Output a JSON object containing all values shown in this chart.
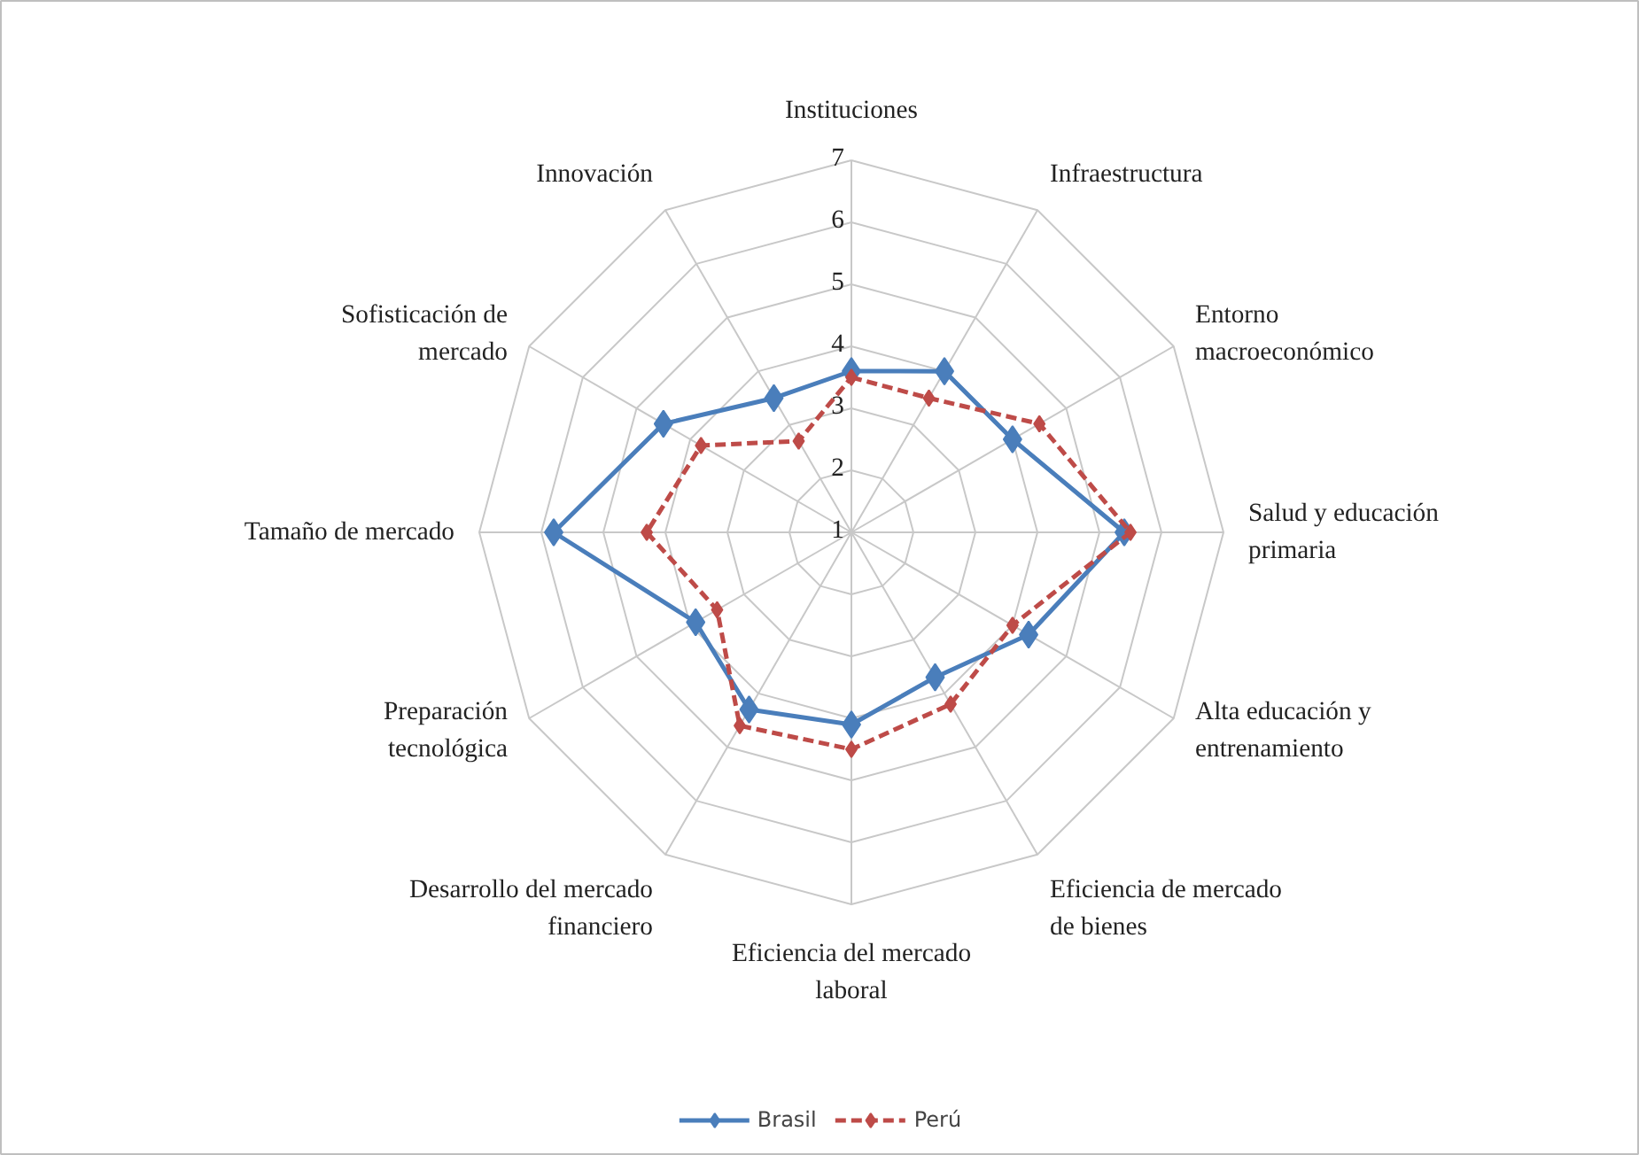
{
  "chart_data": {
    "type": "radar",
    "categories": [
      "Instituciones",
      "Infraestructura",
      "Entorno\nmacroeconómico",
      "Salud y educación\nprimaria",
      "Alta educación y\nentrenamiento",
      "Eficiencia de mercado\nde bienes",
      "Eficiencia del mercado\nlaboral",
      "Desarrollo del mercado\nfinanciero",
      "Preparación\ntecnológica",
      "Tamaño de mercado",
      "Sofisticación de\nmercado",
      "Innovación"
    ],
    "series": [
      {
        "name": "Brasil",
        "color": "#4a7ebb",
        "line_style": "solid",
        "values": [
          3.6,
          4.0,
          4.0,
          5.4,
          4.3,
          3.7,
          4.1,
          4.3,
          3.9,
          5.8,
          4.5,
          3.5
        ]
      },
      {
        "name": "Perú",
        "color": "#be4b48",
        "line_style": "dashed",
        "values": [
          3.5,
          3.5,
          4.5,
          5.5,
          4.0,
          4.2,
          4.5,
          4.6,
          3.5,
          4.3,
          3.8,
          2.7
        ]
      }
    ],
    "ylim": [
      1,
      7
    ],
    "yticks": [
      1,
      2,
      3,
      4,
      5,
      6,
      7
    ],
    "grid": true,
    "legend": "bottom",
    "marker": "diamond"
  }
}
